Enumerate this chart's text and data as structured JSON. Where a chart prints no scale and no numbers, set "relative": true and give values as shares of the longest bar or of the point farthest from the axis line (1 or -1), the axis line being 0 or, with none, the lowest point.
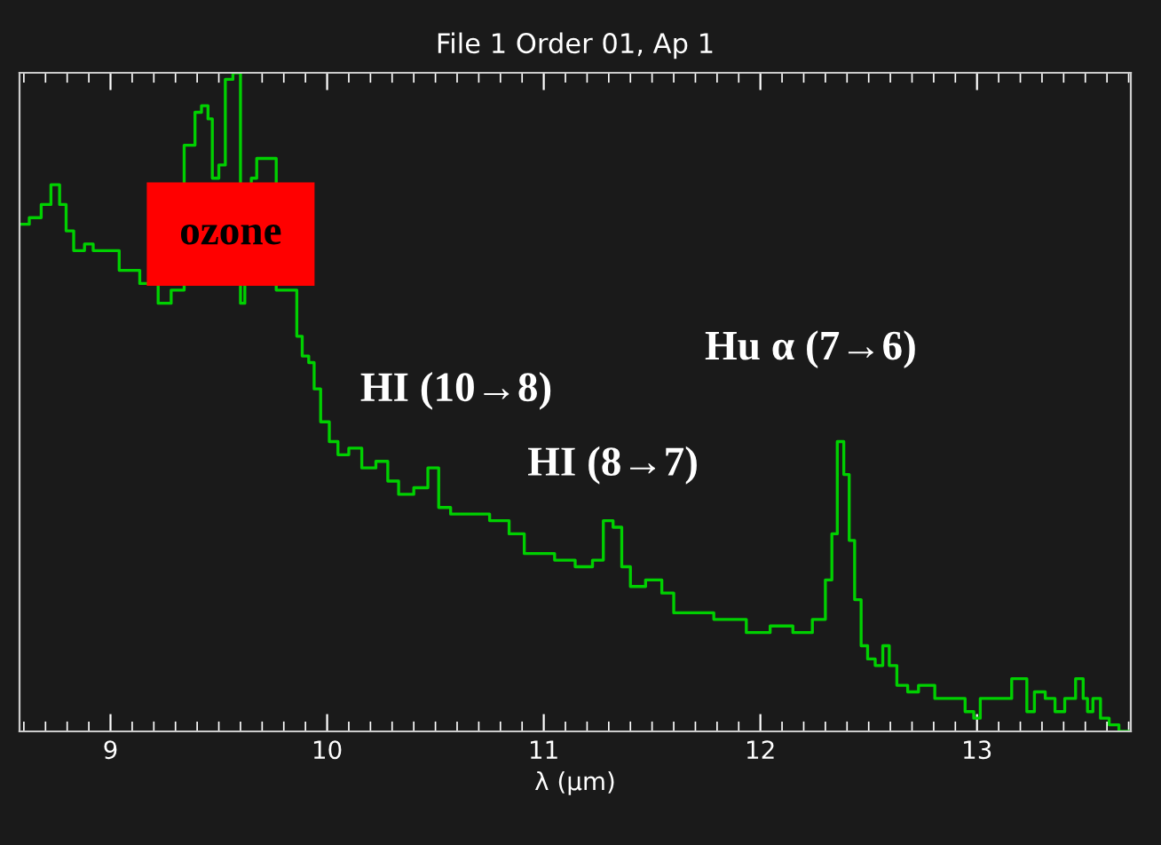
{
  "chart_data": {
    "type": "step",
    "title": "File 1 Order 01, Ap 1",
    "xlabel": "λ (μm)",
    "relative": true,
    "grid": false,
    "xlim": [
      8.58,
      13.71
    ],
    "xticks": [
      9,
      10,
      11,
      12,
      13
    ],
    "annotations": [
      "ozone",
      "HI (10→8)",
      "HI (8→7)",
      "Hu α (7→6)"
    ],
    "series": [
      {
        "color": "#00d000",
        "x": [
          8.59,
          8.66,
          8.7,
          8.75,
          8.78,
          8.81,
          8.85,
          8.91,
          8.93,
          9.03,
          9.05,
          9.09,
          9.18,
          9.26,
          9.3,
          9.38,
          9.4,
          9.44,
          9.46,
          9.48,
          9.52,
          9.54,
          9.59,
          9.61,
          9.63,
          9.67,
          9.68,
          9.85,
          9.87,
          9.9,
          9.93,
          9.95,
          9.99,
          10.03,
          10.07,
          10.13,
          10.19,
          10.26,
          10.3,
          10.36,
          10.44,
          10.49,
          10.54,
          10.6,
          10.71,
          10.79,
          10.89,
          10.93,
          11.01,
          11.09,
          11.2,
          11.25,
          11.3,
          11.34,
          11.38,
          11.42,
          11.52,
          11.57,
          11.63,
          11.69,
          11.88,
          11.99,
          12.1,
          12.2,
          12.28,
          12.32,
          12.34,
          12.37,
          12.4,
          12.42,
          12.45,
          12.48,
          12.51,
          12.55,
          12.58,
          12.61,
          12.65,
          12.71,
          12.75,
          12.86,
          12.92,
          12.97,
          13.0,
          13.03,
          13.08,
          13.14,
          13.18,
          13.22,
          13.24,
          13.29,
          13.34,
          13.38,
          13.43,
          13.48,
          13.5,
          13.52,
          13.55,
          13.59,
          13.63,
          13.68,
          13.7
        ],
        "values": [
          0.77,
          0.78,
          0.8,
          0.83,
          0.8,
          0.76,
          0.73,
          0.74,
          0.73,
          0.73,
          0.7,
          0.7,
          0.68,
          0.65,
          0.67,
          0.89,
          0.94,
          0.95,
          0.93,
          0.84,
          0.86,
          0.99,
          1.0,
          0.65,
          0.83,
          0.84,
          0.87,
          0.67,
          0.6,
          0.57,
          0.56,
          0.52,
          0.47,
          0.44,
          0.42,
          0.43,
          0.4,
          0.41,
          0.38,
          0.36,
          0.37,
          0.4,
          0.34,
          0.33,
          0.33,
          0.32,
          0.3,
          0.27,
          0.27,
          0.26,
          0.25,
          0.26,
          0.32,
          0.31,
          0.25,
          0.22,
          0.23,
          0.21,
          0.18,
          0.18,
          0.17,
          0.15,
          0.16,
          0.15,
          0.17,
          0.23,
          0.3,
          0.44,
          0.39,
          0.29,
          0.2,
          0.13,
          0.11,
          0.1,
          0.13,
          0.1,
          0.07,
          0.06,
          0.07,
          0.05,
          0.05,
          0.03,
          0.02,
          0.05,
          0.05,
          0.05,
          0.08,
          0.08,
          0.03,
          0.06,
          0.05,
          0.03,
          0.05,
          0.08,
          0.05,
          0.03,
          0.05,
          0.02,
          0.01,
          0.0,
          0.0
        ]
      }
    ]
  }
}
